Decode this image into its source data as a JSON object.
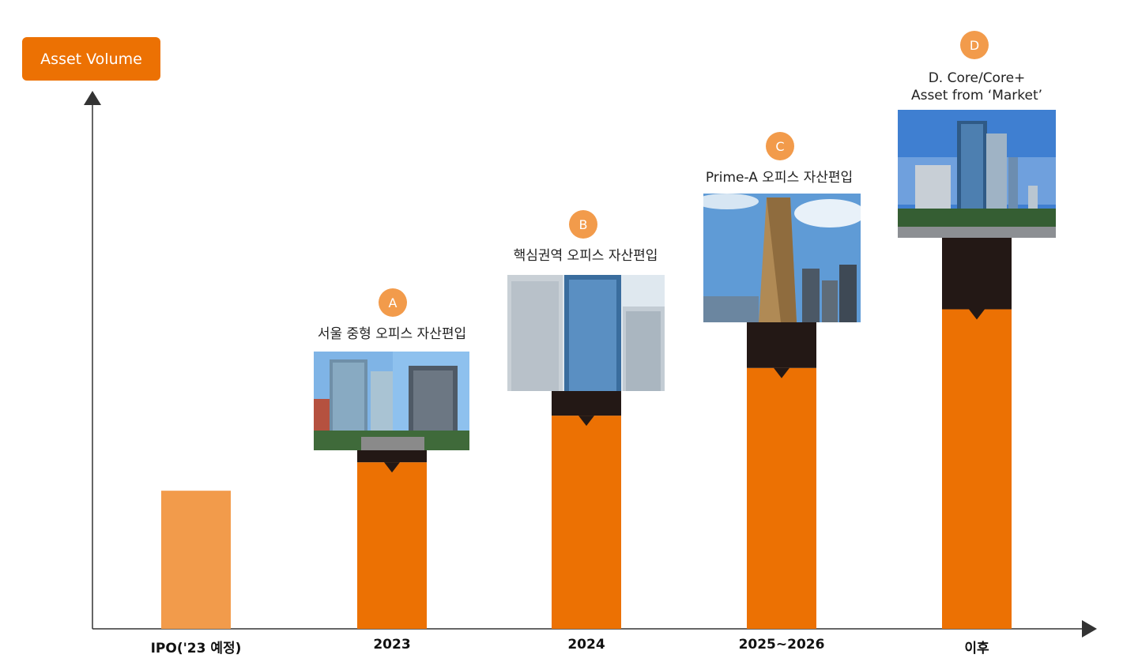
{
  "colors": {
    "accent": "#EC7103",
    "base_bar": "#F29B4B",
    "dark": "#231815",
    "marker": "#F29B4B"
  },
  "chart_data": {
    "type": "bar",
    "ylabel": "Asset Volume",
    "categories": [
      "IPO('23 예정)",
      "2023",
      "2024",
      "2025~2026",
      "이후"
    ],
    "base_values": [
      126,
      126,
      126,
      126,
      126
    ],
    "stacked_additions": [
      {
        "category": "2023",
        "label": "A",
        "cumulative_top": 188
      },
      {
        "category": "2024",
        "label": "B",
        "cumulative_top": 263
      },
      {
        "category": "2025~2026",
        "label": "C",
        "cumulative_top": 350
      },
      {
        "category": "이후",
        "label": "D",
        "cumulative_top": 457
      }
    ],
    "totals": [
      126,
      188,
      263,
      350,
      457
    ],
    "ylim": [
      0,
      480
    ]
  },
  "stages": [
    {
      "marker": "A",
      "caption": "서울 중형 오피스 자산편입",
      "photo": "mid-size office buildings"
    },
    {
      "marker": "B",
      "caption": "핵심권역 오피스 자산편입",
      "photo": "glass office towers"
    },
    {
      "marker": "C",
      "caption": "Prime-A 오피스 자산편입",
      "photo": "golden skyscraper"
    },
    {
      "marker": "D",
      "caption_line1": "D. Core/Core+",
      "caption_line2": "Asset from ‘Market’",
      "photo": "skyline with towers"
    }
  ]
}
